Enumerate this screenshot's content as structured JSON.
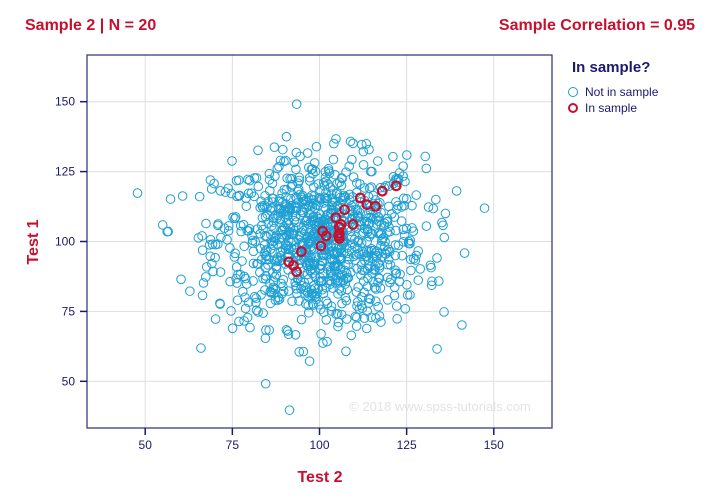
{
  "header": {
    "left": "Sample 2 | N = 20",
    "right": "Sample Correlation = 0.95"
  },
  "chart_data": {
    "type": "scatter",
    "xlabel": "Test 2",
    "ylabel": "Test 1",
    "xlim": [
      33.3,
      166.7
    ],
    "ylim": [
      33.3,
      166.7
    ],
    "xticks": [
      50,
      75,
      100,
      125,
      150
    ],
    "yticks": [
      50,
      75,
      100,
      125,
      150
    ],
    "grid": true,
    "legend": {
      "title": "In sample?",
      "placement": "right",
      "entries": [
        "Not in sample",
        "In sample"
      ]
    },
    "watermark": "© 2018 www.spss-tutorials.com",
    "series": [
      {
        "name": "Not in sample",
        "color": "#1e9fd4",
        "population": {
          "n": 1000,
          "mean_x": 100,
          "mean_y": 100,
          "sd_x": 15,
          "sd_y": 15,
          "correlation": 0.0
        }
      },
      {
        "name": "In sample",
        "color": "#c8102e",
        "points": [
          [
            122.0,
            119.9
          ],
          [
            118.0,
            118.0
          ],
          [
            111.7,
            115.6
          ],
          [
            113.6,
            113.2
          ],
          [
            116.1,
            112.6
          ],
          [
            107.2,
            111.4
          ],
          [
            104.7,
            108.5
          ],
          [
            109.6,
            106.1
          ],
          [
            106.2,
            106.1
          ],
          [
            105.7,
            105.1
          ],
          [
            105.7,
            102.9
          ],
          [
            105.7,
            101.1
          ],
          [
            100.9,
            103.7
          ],
          [
            101.9,
            102.0
          ],
          [
            100.4,
            98.4
          ],
          [
            94.8,
            96.4
          ],
          [
            91.2,
            92.7
          ],
          [
            92.5,
            91.4
          ],
          [
            93.4,
            89.2
          ],
          [
            105.5,
            102.0
          ]
        ]
      }
    ]
  }
}
